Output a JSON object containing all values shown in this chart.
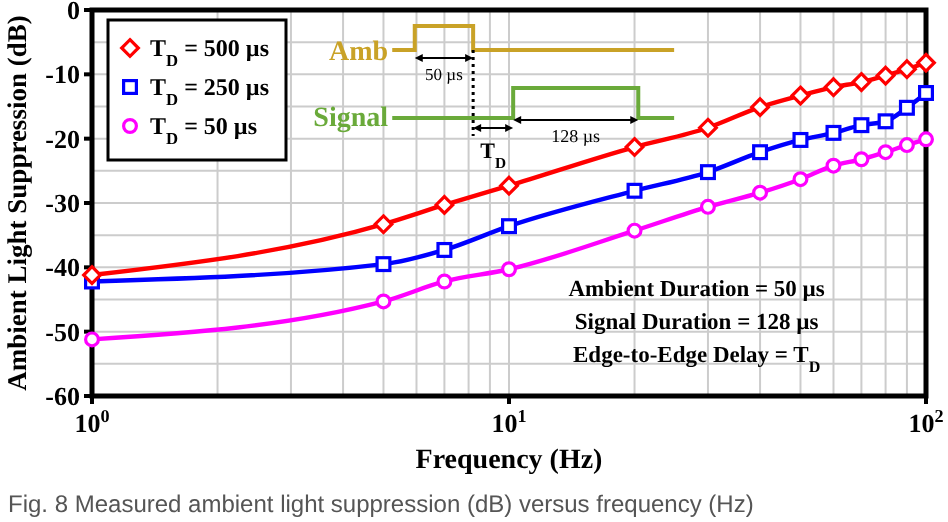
{
  "chart_data": {
    "type": "line",
    "xlabel": "Frequency (Hz)",
    "ylabel": "Ambient Light Suppression (dB)",
    "log": "x",
    "grid": true,
    "legend": "top left",
    "line_style": "solid",
    "xlim": [
      1,
      100
    ],
    "xticks": [
      {
        "value": 1,
        "label": "10$^{0}$"
      },
      {
        "value": 2,
        "label": null
      },
      {
        "value": 3,
        "label": null
      },
      {
        "value": 4,
        "label": null
      },
      {
        "value": 5,
        "label": null
      },
      {
        "value": 6,
        "label": null
      },
      {
        "value": 7,
        "label": null
      },
      {
        "value": 8,
        "label": null
      },
      {
        "value": 9,
        "label": null
      },
      {
        "value": 10,
        "label": "10$^{1}$"
      },
      {
        "value": 20,
        "label": null
      },
      {
        "value": 30,
        "label": null
      },
      {
        "value": 40,
        "label": null
      },
      {
        "value": 50,
        "label": null
      },
      {
        "value": 60,
        "label": null
      },
      {
        "value": 70,
        "label": null
      },
      {
        "value": 80,
        "label": null
      },
      {
        "value": 90,
        "label": null
      },
      {
        "value": 100,
        "label": "10$^{2}$"
      }
    ],
    "ylim": [
      -60,
      0
    ],
    "yticks": [
      -60,
      {
        "value": -55,
        "label": null
      },
      -50,
      {
        "value": -45,
        "label": null
      },
      -40,
      {
        "value": -35,
        "label": null
      },
      -30,
      {
        "value": -25,
        "label": null
      },
      -20,
      {
        "value": -15,
        "label": null
      },
      -10,
      {
        "value": -5,
        "label": null
      },
      0
    ],
    "x": [
      1,
      5,
      7,
      10,
      20,
      30,
      40,
      50,
      60,
      70,
      80,
      90,
      100
    ],
    "series": [
      {
        "name": "T$_{D}$ = 500 µs",
        "color": "#ff0000",
        "marker": "diamond",
        "values": [
          -41.2,
          -33.3,
          -30.3,
          -27.3,
          -21.3,
          -18.3,
          -15.1,
          -13.3,
          -12,
          -11.2,
          -10.2,
          -9.2,
          -8.2
        ]
      },
      {
        "name": "T$_{D}$ = 250 µs",
        "color": "#0000ff",
        "marker": "square",
        "values": [
          -42.2,
          -39.5,
          -37.3,
          -33.6,
          -28.1,
          -25.2,
          -22.1,
          -20.2,
          -19.1,
          -17.9,
          -17.3,
          -15.2,
          -12.9
        ]
      },
      {
        "name": "T$_{D}$ = 50 µs",
        "color": "#ff00ff",
        "marker": "circle",
        "values": [
          -51.2,
          -45.3,
          -42.2,
          -40.3,
          -34.3,
          -30.6,
          -28.4,
          -26.3,
          -24.2,
          -23.2,
          -22.1,
          -21,
          -20.1
        ]
      }
    ],
    "annotations": [
      "Amb",
      "Signal",
      "50 µs",
      "128 µs",
      "T$_{D}$",
      "Ambient Duration = 50 µs",
      "Signal Duration = 128 µs",
      "Edge-to-Edge Delay = T$_{D}$",
      "Fig. 8   Measured ambient light suppression (dB) versus frequency (Hz)"
    ]
  }
}
